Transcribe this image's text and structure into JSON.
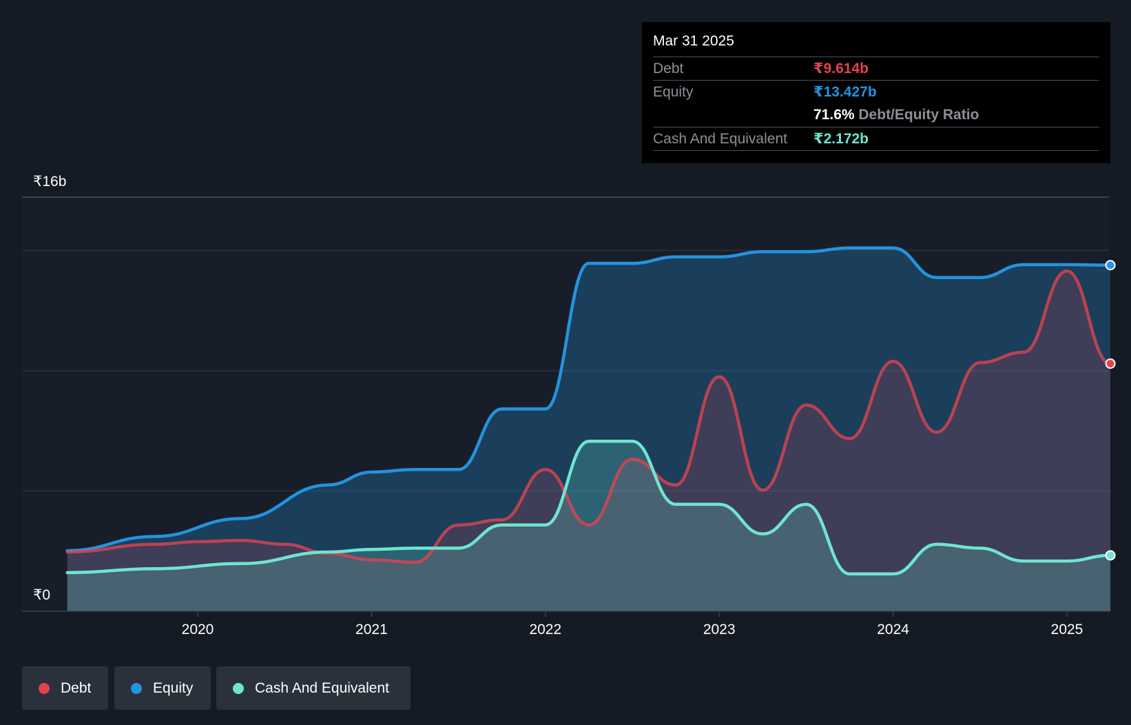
{
  "colors": {
    "background": "#151b24",
    "debt": "#e0434f",
    "equity": "#2394df",
    "cash": "#6fe5d0"
  },
  "tooltip": {
    "date": "Mar 31 2025",
    "debt_label": "Debt",
    "debt_value": "₹9.614b",
    "equity_label": "Equity",
    "equity_value": "₹13.427b",
    "ratio_value": "71.6%",
    "ratio_label": "Debt/Equity Ratio",
    "cash_label": "Cash And Equivalent",
    "cash_value": "₹2.172b"
  },
  "legend": {
    "debt": "Debt",
    "equity": "Equity",
    "cash": "Cash And Equivalent"
  },
  "chart_data": {
    "type": "area",
    "y_top_label": "₹16b",
    "y_bottom_label": "₹0",
    "ylim": [
      0,
      16
    ],
    "grid": true,
    "x_ticks": [
      2020,
      2021,
      2022,
      2023,
      2024,
      2025
    ],
    "x_tick_labels": [
      "2020",
      "2021",
      "2022",
      "2023",
      "2024",
      "2025"
    ],
    "xlim": [
      2019.25,
      2025.25
    ],
    "series": [
      {
        "name": "Equity",
        "color": "#2394df",
        "x": [
          2019.25,
          2019.75,
          2020.25,
          2020.75,
          2021.0,
          2021.25,
          2021.5,
          2021.75,
          2022.0,
          2022.25,
          2022.5,
          2022.75,
          2023.0,
          2023.25,
          2023.5,
          2023.75,
          2024.0,
          2024.25,
          2024.5,
          2024.75,
          2025.0,
          2025.25
        ],
        "values": [
          2.35,
          2.9,
          3.6,
          4.9,
          5.4,
          5.5,
          5.5,
          7.85,
          7.85,
          13.5,
          13.5,
          13.75,
          13.75,
          13.95,
          13.95,
          14.1,
          14.1,
          12.95,
          12.95,
          13.45,
          13.45,
          13.43
        ]
      },
      {
        "name": "Debt",
        "color": "#e0434f",
        "x": [
          2019.25,
          2019.75,
          2020.0,
          2020.25,
          2020.5,
          2020.75,
          2021.0,
          2021.25,
          2021.5,
          2021.75,
          2022.0,
          2022.25,
          2022.5,
          2022.75,
          2023.0,
          2023.25,
          2023.5,
          2023.75,
          2024.0,
          2024.25,
          2024.5,
          2024.75,
          2025.0,
          2025.25
        ],
        "values": [
          2.3,
          2.6,
          2.7,
          2.75,
          2.6,
          2.25,
          2.0,
          1.9,
          3.35,
          3.55,
          5.5,
          3.35,
          5.9,
          4.9,
          9.1,
          4.7,
          8.0,
          6.7,
          9.7,
          6.95,
          9.65,
          10.05,
          13.2,
          9.61
        ]
      },
      {
        "name": "Cash And Equivalent",
        "color": "#6fe5d0",
        "x": [
          2019.25,
          2019.75,
          2020.25,
          2020.75,
          2021.0,
          2021.25,
          2021.5,
          2021.75,
          2022.0,
          2022.25,
          2022.5,
          2022.75,
          2023.0,
          2023.25,
          2023.5,
          2023.75,
          2024.0,
          2024.25,
          2024.5,
          2024.75,
          2025.0,
          2025.25
        ],
        "values": [
          1.5,
          1.65,
          1.85,
          2.3,
          2.4,
          2.45,
          2.45,
          3.35,
          3.35,
          6.6,
          6.6,
          4.15,
          4.15,
          3.0,
          4.15,
          1.45,
          1.45,
          2.6,
          2.45,
          1.95,
          1.95,
          2.17
        ]
      }
    ]
  }
}
